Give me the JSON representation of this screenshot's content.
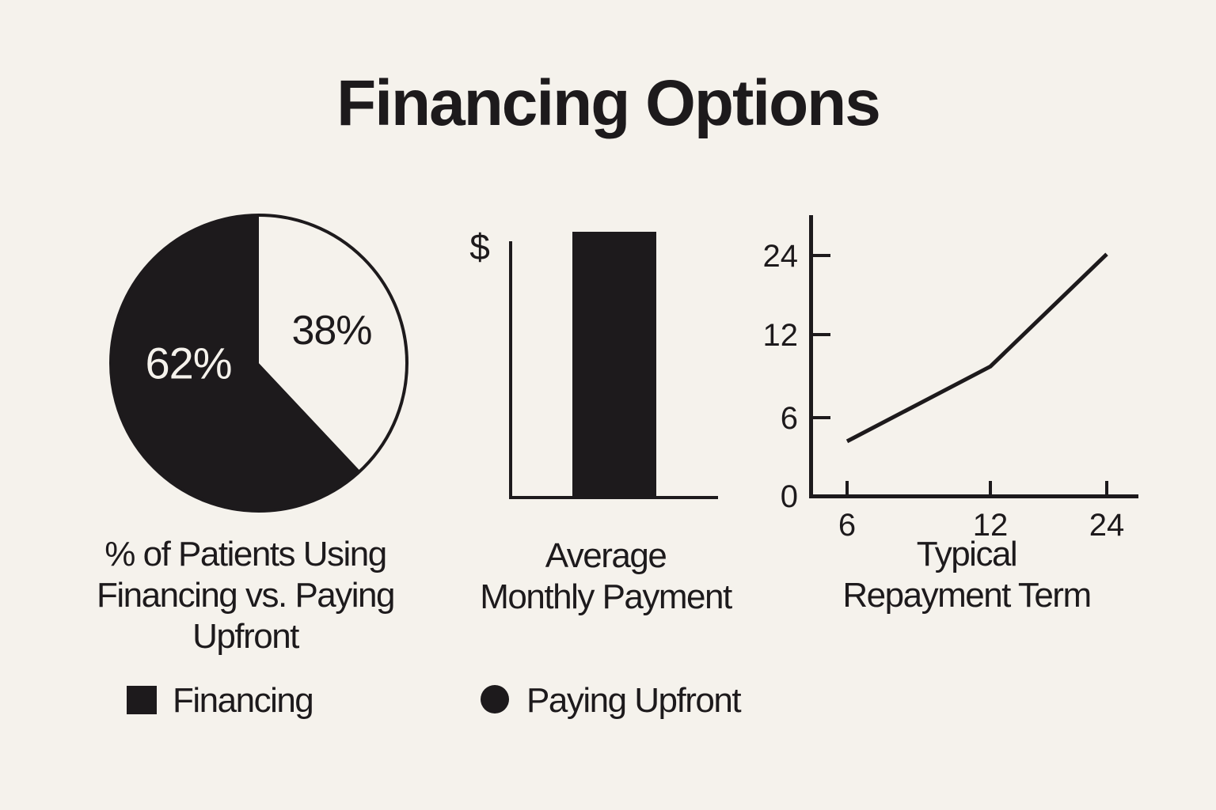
{
  "title": "Financing Options",
  "colors": {
    "background": "#f5f2ec",
    "ink": "#1d1a1c"
  },
  "legend": {
    "items": [
      {
        "label": "Financing",
        "marker": "square"
      },
      {
        "label": "Paying Upfront",
        "marker": "circle"
      }
    ]
  },
  "chart_data": [
    {
      "type": "pie",
      "title": "% of Patients Using Financing vs. Paying Upfront",
      "title_lines": [
        "% of Patients Using",
        "Financing vs. Paying",
        "Upfront"
      ],
      "slices": [
        {
          "label": "Financing",
          "value": 62,
          "display": "62%",
          "color": "#1d1a1c"
        },
        {
          "label": "Paying Upfront",
          "value": 38,
          "display": "38%",
          "color": "#f5f2ec"
        }
      ],
      "start": "12 o'clock",
      "note": "38% slice drawn clockwise from top; percentage labels placed inside slices; circle has black outline"
    },
    {
      "type": "bar",
      "title": "Average Monthly Payment",
      "title_lines": [
        "Average",
        "Monthly Payment"
      ],
      "ylabel": "$",
      "categories": [
        "Average Monthly Payment"
      ],
      "note": "single solid black bar with no numeric scale; bar top rises slightly above the y-axis top"
    },
    {
      "type": "line",
      "title": "Typical Repayment Term",
      "title_lines": [
        "Typical",
        "Repayment Term"
      ],
      "x": [
        6,
        12,
        24
      ],
      "y": [
        4.2,
        9.7,
        24.2
      ],
      "xticks": [
        6,
        12,
        24
      ],
      "yticks": [
        0,
        6,
        12,
        24
      ],
      "xlabel": "",
      "ylabel": "",
      "grid": false,
      "note": "y values estimated from plot; tick spacing is uniform even though values 0/6/12/24 are non-linear"
    }
  ]
}
